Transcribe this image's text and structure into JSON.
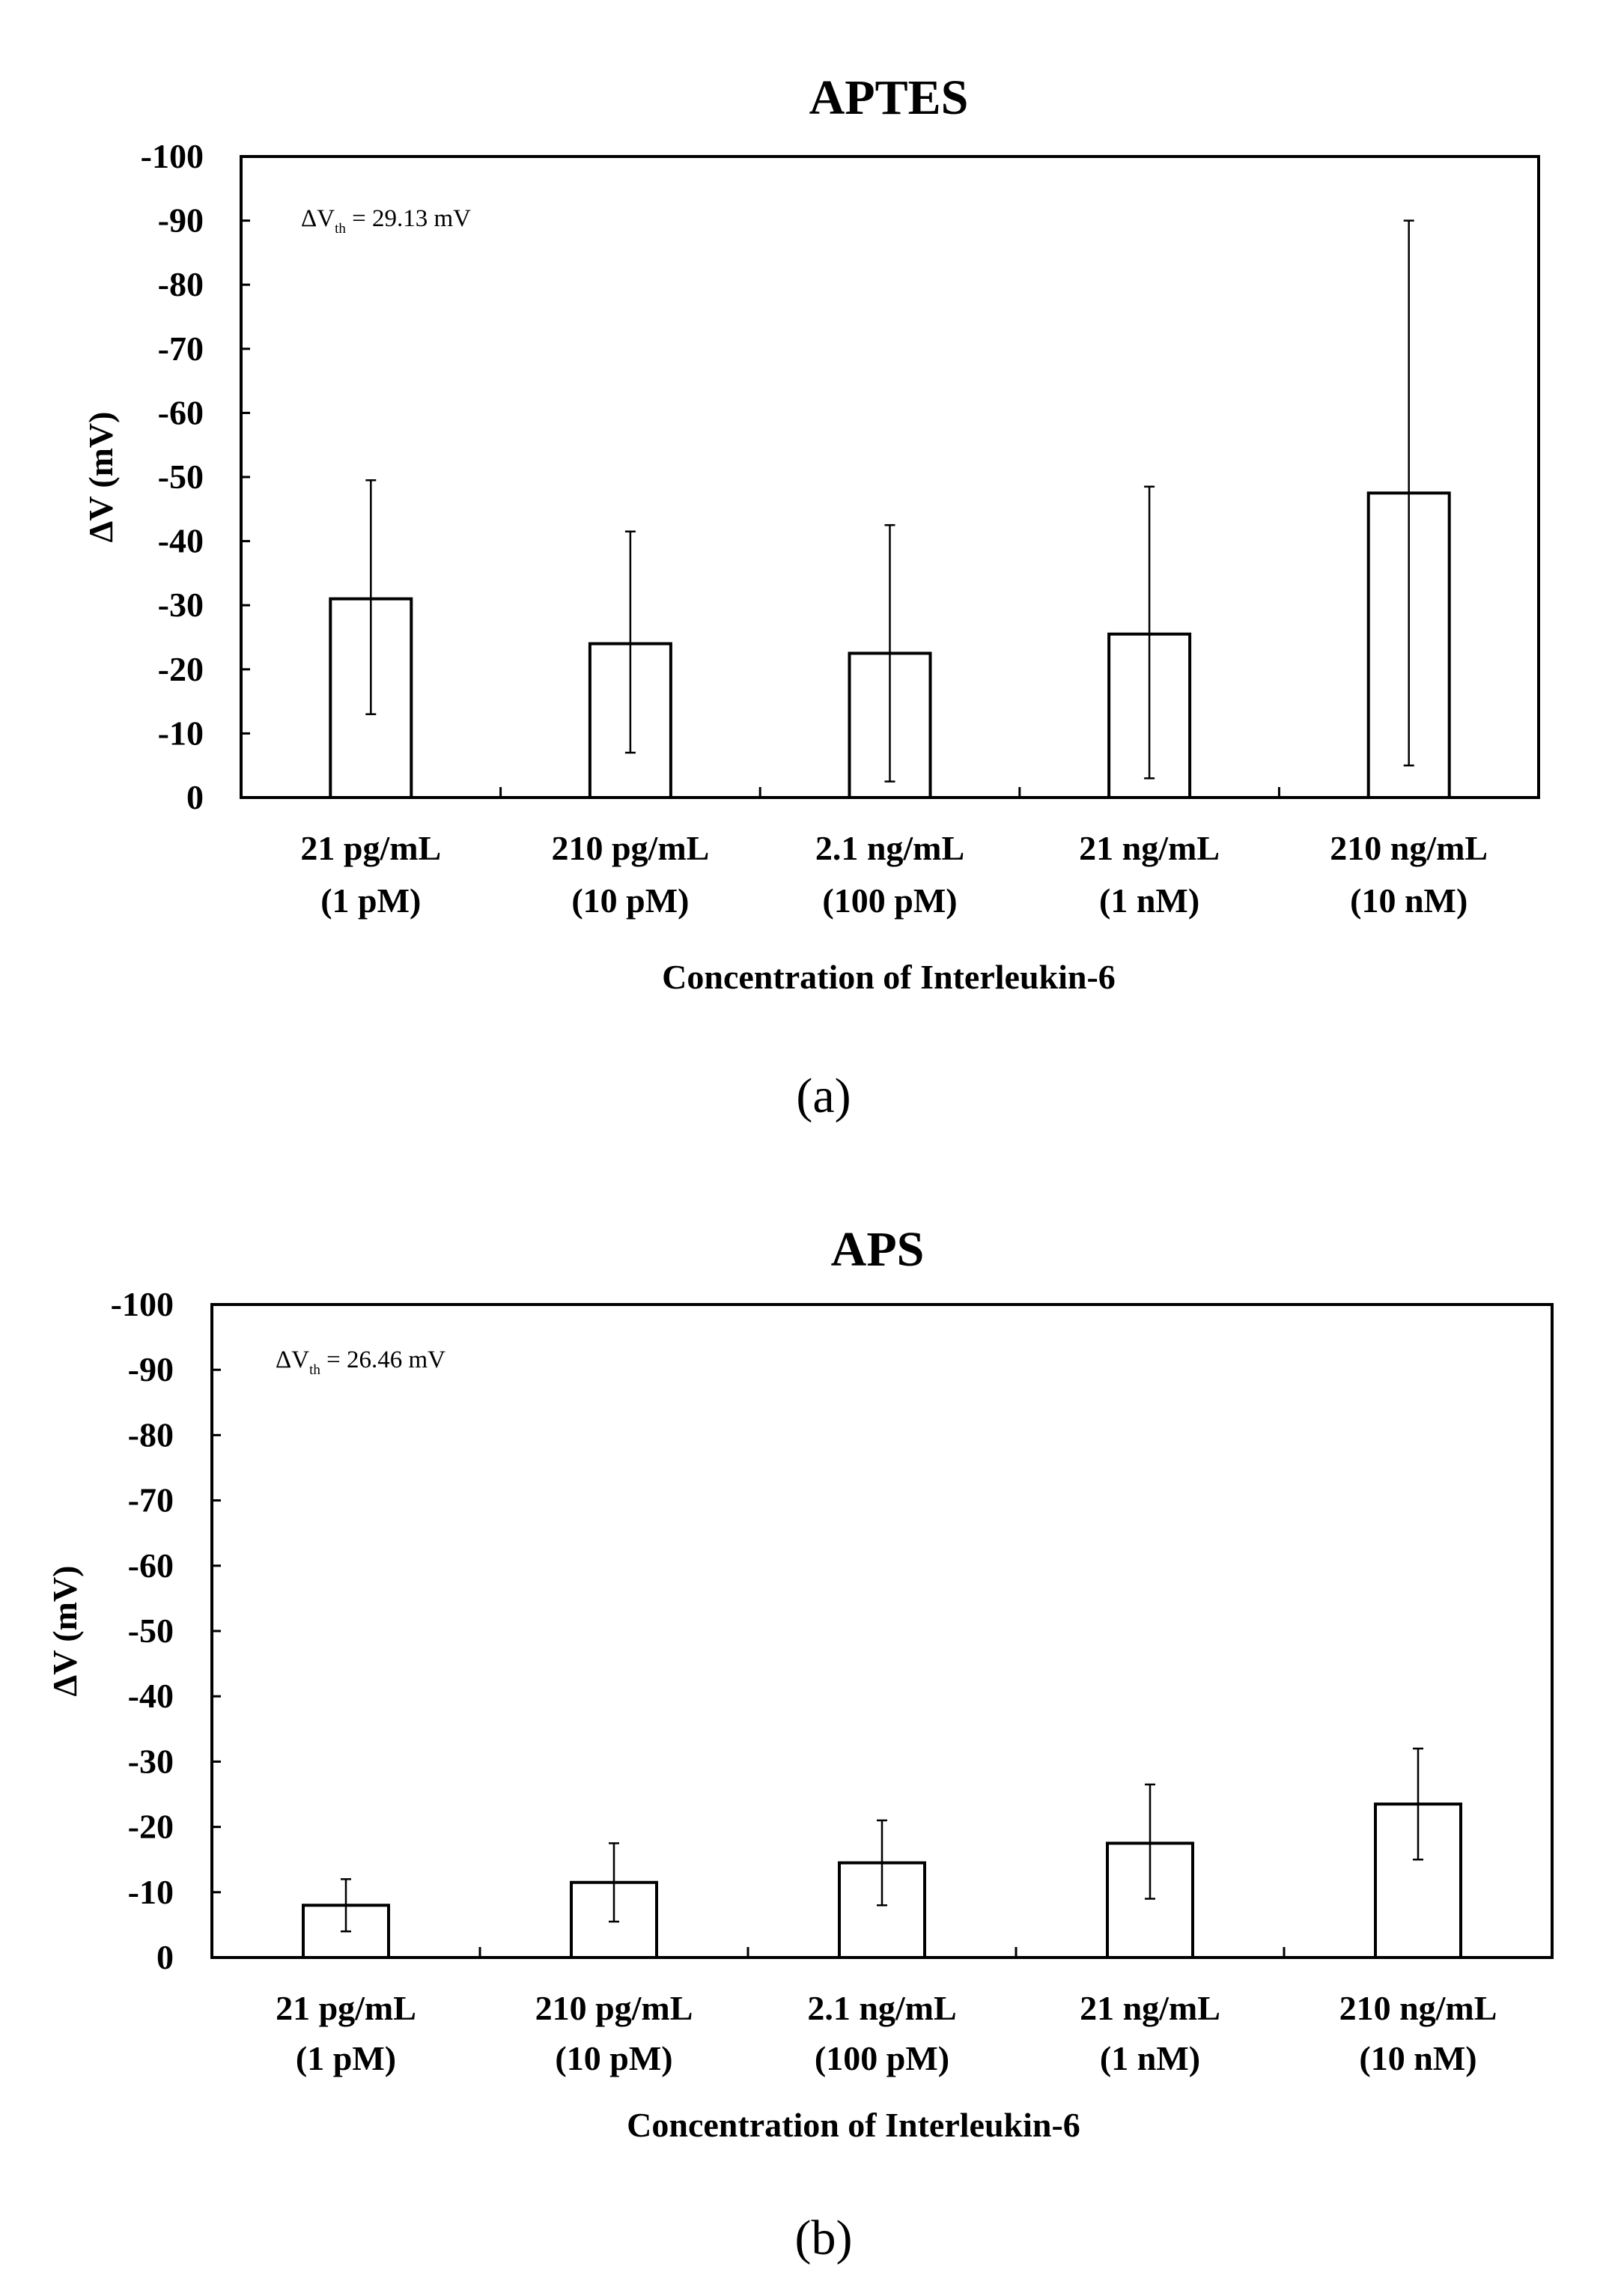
{
  "chart_data": [
    {
      "type": "bar",
      "panel_label": "(a)",
      "title": "APTES",
      "ylabel": "ΔV (mV)",
      "xlabel": "Concentration of Interleukin-6",
      "annotation": {
        "prefix": "ΔV",
        "subscript": "th",
        "suffix": " = 29.13 mV"
      },
      "ylim": [
        0,
        -100
      ],
      "yticks": [
        "-100",
        "-90",
        "-80",
        "-70",
        "-60",
        "-50",
        "-40",
        "-30",
        "-20",
        "-10",
        "0"
      ],
      "categories": [
        {
          "line1": "21 pg/mL",
          "line2": "(1 pM)"
        },
        {
          "line1": "210 pg/mL",
          "line2": "(10 pM)"
        },
        {
          "line1": "2.1 ng/mL",
          "line2": "(100 pM)"
        },
        {
          "line1": "21 ng/mL",
          "line2": "(1 nM)"
        },
        {
          "line1": "210 ng/mL",
          "line2": "(10 nM)"
        }
      ],
      "values": [
        -31,
        -24,
        -22.5,
        -25.5,
        -47.5
      ],
      "error_upper": [
        -49.5,
        -41.5,
        -42.5,
        -48.5,
        -90
      ],
      "error_lower": [
        -13,
        -7,
        -2.5,
        -3,
        -5
      ]
    },
    {
      "type": "bar",
      "panel_label": "(b)",
      "title": "APS",
      "ylabel": "ΔV (mV)",
      "xlabel": "Concentration of Interleukin-6",
      "annotation": {
        "prefix": "ΔV",
        "subscript": "th",
        "suffix": " = 26.46 mV"
      },
      "ylim": [
        0,
        -100
      ],
      "yticks": [
        "-100",
        "-90",
        "-80",
        "-70",
        "-60",
        "-50",
        "-40",
        "-30",
        "-20",
        "-10",
        "0"
      ],
      "categories": [
        {
          "line1": "21 pg/mL",
          "line2": "(1 pM)"
        },
        {
          "line1": "210 pg/mL",
          "line2": "(10 pM)"
        },
        {
          "line1": "2.1 ng/mL",
          "line2": "(100 pM)"
        },
        {
          "line1": "21 ng/mL",
          "line2": "(1 nM)"
        },
        {
          "line1": "210 ng/mL",
          "line2": "(10 nM)"
        }
      ],
      "values": [
        -8,
        -11.5,
        -14.5,
        -17.5,
        -23.5
      ],
      "error_upper": [
        -12,
        -17.5,
        -21,
        -26.5,
        -32
      ],
      "error_lower": [
        -4,
        -5.5,
        -8,
        -9,
        -15
      ]
    }
  ]
}
